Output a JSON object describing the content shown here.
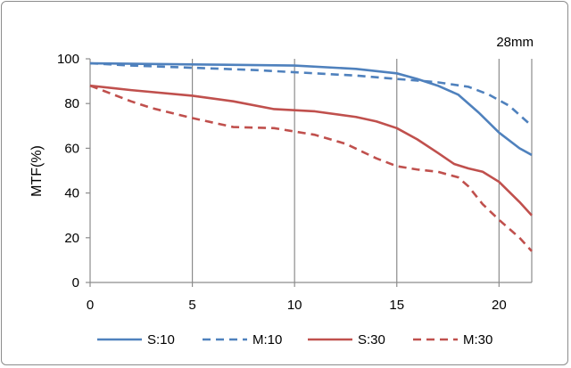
{
  "chart_data": {
    "type": "line",
    "title": "",
    "annotation": "28mm",
    "xlabel": "",
    "ylabel": "MTF(%)",
    "xlim": [
      0,
      21.6
    ],
    "ylim": [
      0,
      100
    ],
    "x_ticks": [
      0,
      5,
      10,
      15,
      20
    ],
    "y_ticks": [
      0,
      20,
      40,
      60,
      80,
      100
    ],
    "grid": "vertical",
    "legend_position": "bottom",
    "series": [
      {
        "name": "S:10",
        "color": "#4f81bd",
        "dash": "solid",
        "points": [
          [
            0,
            98
          ],
          [
            5,
            97.5
          ],
          [
            10,
            97
          ],
          [
            13,
            95.5
          ],
          [
            15,
            93.5
          ],
          [
            16,
            91
          ],
          [
            17,
            88
          ],
          [
            18,
            84
          ],
          [
            19,
            76
          ],
          [
            20,
            67
          ],
          [
            21,
            60
          ],
          [
            21.6,
            57
          ]
        ]
      },
      {
        "name": "M:10",
        "color": "#4f81bd",
        "dash": "dashed",
        "points": [
          [
            0,
            98
          ],
          [
            2,
            97
          ],
          [
            5,
            96
          ],
          [
            8,
            95
          ],
          [
            10,
            94
          ],
          [
            13,
            92.5
          ],
          [
            15,
            91
          ],
          [
            17,
            89.5
          ],
          [
            18.5,
            87.5
          ],
          [
            19.5,
            84
          ],
          [
            20.5,
            79
          ],
          [
            21.6,
            70
          ]
        ]
      },
      {
        "name": "S:30",
        "color": "#c0504d",
        "dash": "solid",
        "points": [
          [
            0,
            88
          ],
          [
            2,
            86
          ],
          [
            5,
            83.5
          ],
          [
            7,
            81
          ],
          [
            9,
            77.5
          ],
          [
            11,
            76.5
          ],
          [
            13,
            74
          ],
          [
            14,
            72
          ],
          [
            15,
            69
          ],
          [
            16,
            64
          ],
          [
            17,
            58
          ],
          [
            17.8,
            53
          ],
          [
            18.5,
            51
          ],
          [
            19.2,
            49.5
          ],
          [
            20,
            45
          ],
          [
            21,
            36
          ],
          [
            21.6,
            30
          ]
        ]
      },
      {
        "name": "M:30",
        "color": "#c0504d",
        "dash": "dashed",
        "points": [
          [
            0,
            88
          ],
          [
            2,
            81
          ],
          [
            3,
            78
          ],
          [
            5,
            73.5
          ],
          [
            7,
            69.5
          ],
          [
            9,
            69
          ],
          [
            11,
            66
          ],
          [
            12.5,
            62
          ],
          [
            14,
            55.5
          ],
          [
            15,
            52
          ],
          [
            16,
            50.5
          ],
          [
            17,
            49.5
          ],
          [
            18,
            47
          ],
          [
            18.5,
            43
          ],
          [
            19.2,
            35
          ],
          [
            20,
            28
          ],
          [
            21,
            20
          ],
          [
            21.6,
            14
          ]
        ]
      }
    ]
  }
}
